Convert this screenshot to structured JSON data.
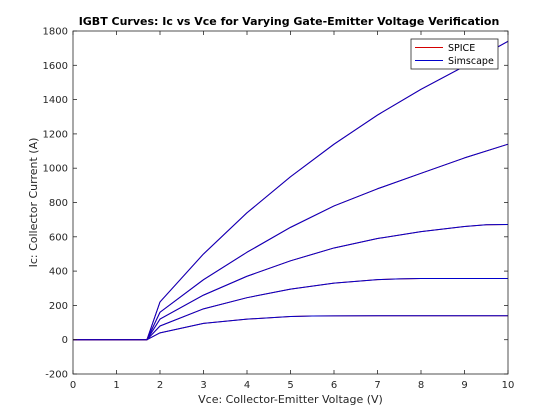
{
  "chart_data": {
    "type": "line",
    "title": "IGBT Curves: Ic vs Vce for Varying Gate-Emitter Voltage Verification",
    "xlabel": "Vce: Collector-Emitter Voltage (V)",
    "ylabel": "Ic: Collector Current (A)",
    "xlim": [
      0,
      10
    ],
    "ylim": [
      -200,
      1800
    ],
    "xticks": [
      0,
      1,
      2,
      3,
      4,
      5,
      6,
      7,
      8,
      9,
      10
    ],
    "yticks": [
      -200,
      0,
      200,
      400,
      600,
      800,
      1000,
      1200,
      1400,
      1600,
      1800
    ],
    "grid": false,
    "legend_position": "top-right",
    "legend": [
      "SPICE",
      "Simscape"
    ],
    "series_colors": {
      "SPICE": "#d40000",
      "Simscape": "#0000cc"
    },
    "curves": [
      {
        "x": [
          0,
          1,
          1.7,
          2,
          3,
          4,
          5,
          6,
          7,
          8,
          9,
          9.5,
          10
        ],
        "y": [
          0,
          0,
          0,
          220,
          500,
          740,
          950,
          1140,
          1310,
          1460,
          1595,
          1670,
          1740
        ]
      },
      {
        "x": [
          0,
          1,
          1.7,
          2,
          3,
          4,
          5,
          6,
          7,
          8,
          9,
          10
        ],
        "y": [
          0,
          0,
          0,
          160,
          350,
          510,
          655,
          780,
          880,
          970,
          1060,
          1140
        ]
      },
      {
        "x": [
          0,
          1,
          1.7,
          2,
          3,
          4,
          5,
          6,
          7,
          8,
          9,
          9.5,
          10
        ],
        "y": [
          0,
          0,
          0,
          120,
          260,
          370,
          460,
          535,
          590,
          630,
          660,
          670,
          672
        ]
      },
      {
        "x": [
          0,
          1,
          1.7,
          2,
          3,
          4,
          5,
          6,
          7,
          7.5,
          8,
          9,
          10
        ],
        "y": [
          0,
          0,
          0,
          80,
          180,
          245,
          295,
          330,
          350,
          355,
          357,
          357,
          357
        ]
      },
      {
        "x": [
          0,
          1,
          1.7,
          2,
          3,
          4,
          5,
          5.5,
          6,
          7,
          8,
          9,
          10
        ],
        "y": [
          0,
          0,
          0,
          40,
          95,
          120,
          135,
          138,
          139,
          140,
          140,
          140,
          140
        ]
      }
    ]
  }
}
